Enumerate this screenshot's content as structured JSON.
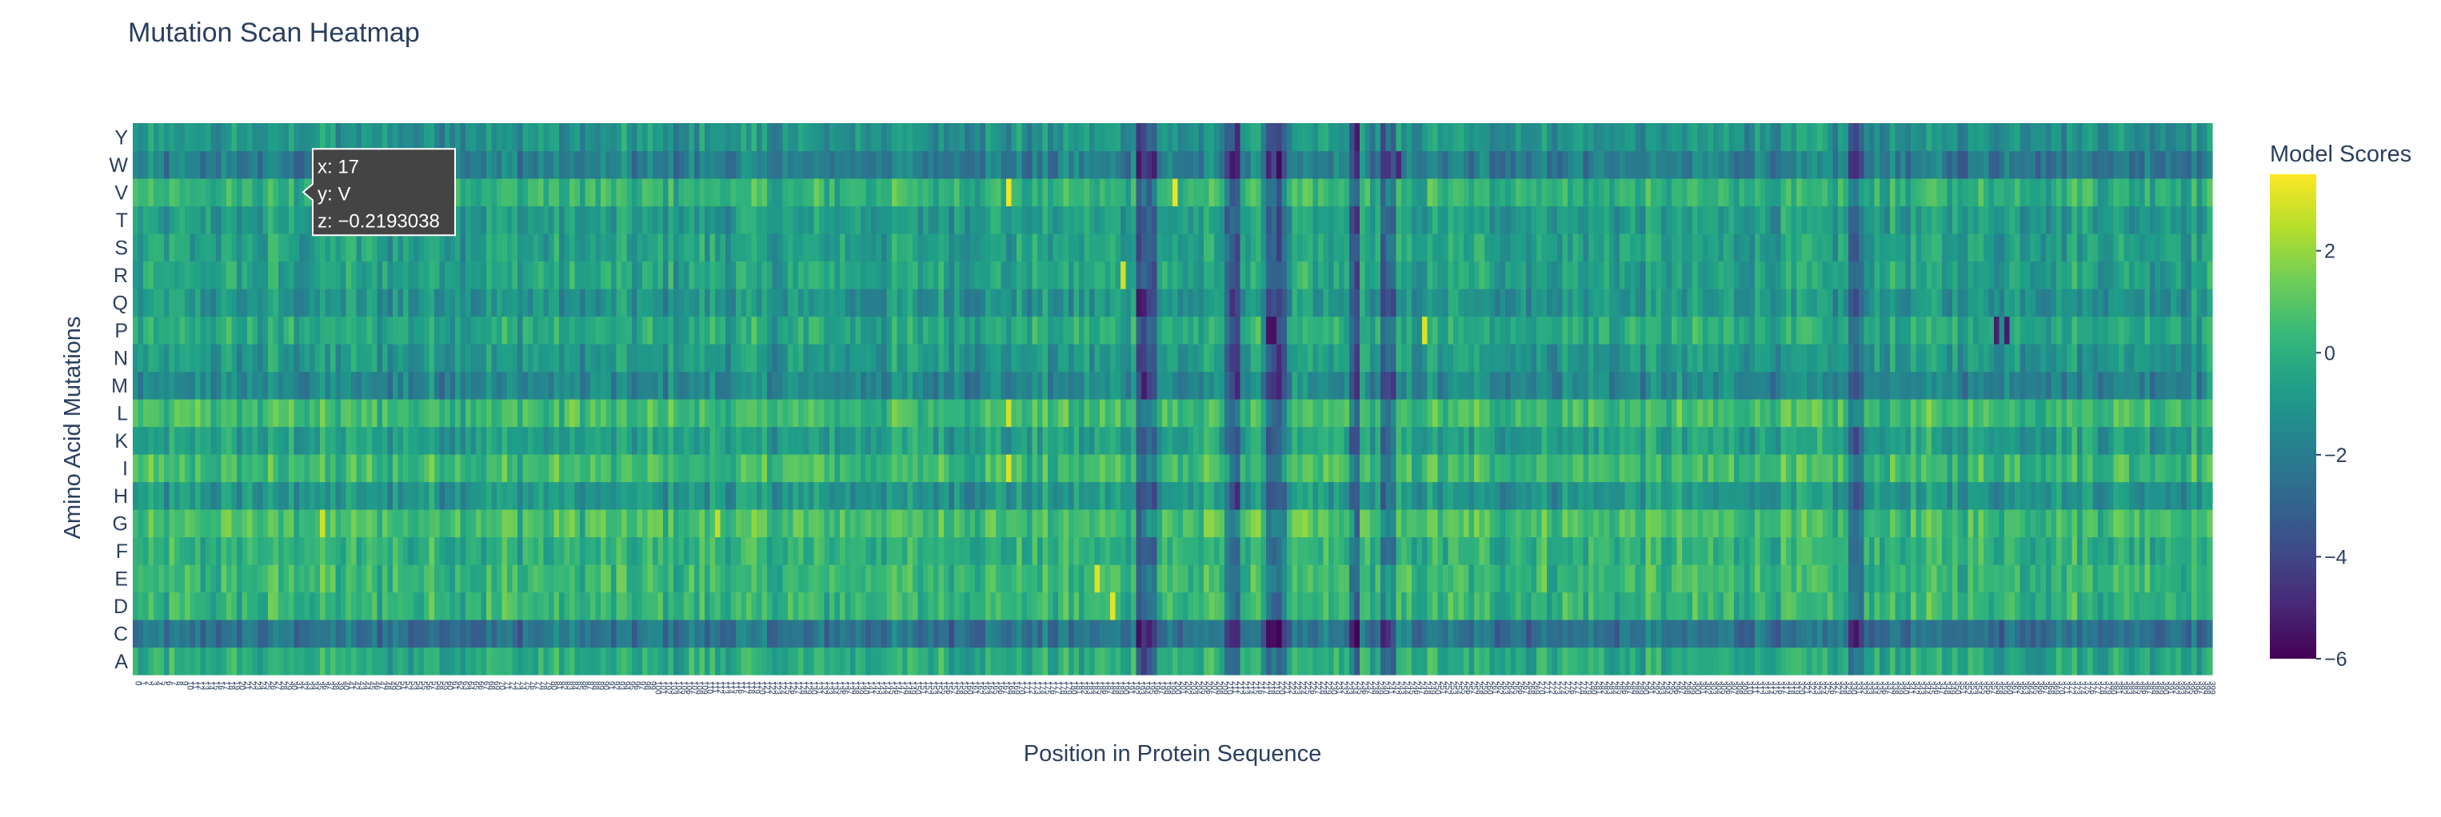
{
  "chart_data": {
    "type": "heatmap",
    "title": "Mutation Scan Heatmap",
    "xlabel": "Position in Protein Sequence",
    "ylabel": "Amino Acid Mutations",
    "y_categories": [
      "A",
      "C",
      "D",
      "E",
      "F",
      "G",
      "H",
      "I",
      "K",
      "L",
      "M",
      "N",
      "P",
      "Q",
      "R",
      "S",
      "T",
      "V",
      "W",
      "Y"
    ],
    "x_range": [
      0,
      399
    ],
    "x_tick_labels_note": "",
    "zmin": -6,
    "zmax": 3.5,
    "colorscale": "Viridis",
    "colorbar": {
      "title": "Model Scores",
      "ticks": [
        -6,
        -4,
        -2,
        0,
        2
      ]
    },
    "row_baselines": {
      "A": -0.2,
      "C": -2.4,
      "D": 0.2,
      "E": 0.3,
      "F": 0.0,
      "G": 0.6,
      "H": -1.0,
      "I": 0.4,
      "K": -0.6,
      "L": 0.5,
      "M": -1.6,
      "N": -0.9,
      "P": -0.3,
      "Q": -1.1,
      "R": -0.5,
      "S": -0.6,
      "T": -0.8,
      "V": 0.1,
      "W": -2.0,
      "Y": -1.1
    },
    "dark_columns": [
      193,
      194,
      195,
      196,
      210,
      211,
      212,
      218,
      219,
      220,
      221,
      234,
      235,
      240,
      241,
      242,
      330,
      331,
      332
    ],
    "hot_spots": [
      {
        "x": 168,
        "y": "V",
        "z": 3.3
      },
      {
        "x": 200,
        "y": "V",
        "z": 3.2
      },
      {
        "x": 168,
        "y": "I",
        "z": 3.0
      },
      {
        "x": 168,
        "y": "L",
        "z": 2.8
      },
      {
        "x": 185,
        "y": "E",
        "z": 3.0
      },
      {
        "x": 188,
        "y": "D",
        "z": 3.1
      },
      {
        "x": 36,
        "y": "G",
        "z": 2.8
      },
      {
        "x": 112,
        "y": "G",
        "z": 2.6
      },
      {
        "x": 248,
        "y": "P",
        "z": 3.0
      },
      {
        "x": 190,
        "y": "R",
        "z": 2.8
      }
    ],
    "cold_spots": [
      {
        "x": 218,
        "y": "P",
        "z": -5.5
      },
      {
        "x": 219,
        "y": "P",
        "z": -5.6
      },
      {
        "x": 358,
        "y": "P",
        "z": -5.2
      },
      {
        "x": 360,
        "y": "P",
        "z": -5.3
      },
      {
        "x": 220,
        "y": "W",
        "z": -5.8
      },
      {
        "x": 243,
        "y": "W",
        "z": -5.0
      },
      {
        "x": 195,
        "y": "W",
        "z": -4.6
      },
      {
        "x": 194,
        "y": "C",
        "z": -4.5
      }
    ],
    "hover": {
      "x_label": "x: 17",
      "y_label": "y: V",
      "z_label": "z: −0.2193038",
      "x": 17,
      "y": "V"
    }
  }
}
